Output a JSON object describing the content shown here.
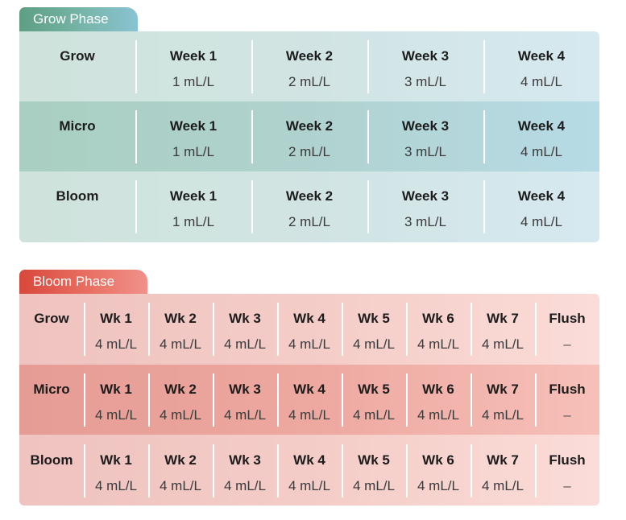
{
  "grow_phase": {
    "title": "Grow Phase",
    "rows": [
      {
        "label": "Grow",
        "cells": [
          {
            "head": "Week 1",
            "value": "1 mL/L"
          },
          {
            "head": "Week 2",
            "value": "2 mL/L"
          },
          {
            "head": "Week 3",
            "value": "3 mL/L"
          },
          {
            "head": "Week 4",
            "value": "4 mL/L"
          }
        ]
      },
      {
        "label": "Micro",
        "cells": [
          {
            "head": "Week 1",
            "value": "1 mL/L"
          },
          {
            "head": "Week 2",
            "value": "2 mL/L"
          },
          {
            "head": "Week 3",
            "value": "3 mL/L"
          },
          {
            "head": "Week 4",
            "value": "4 mL/L"
          }
        ]
      },
      {
        "label": "Bloom",
        "cells": [
          {
            "head": "Week 1",
            "value": "1 mL/L"
          },
          {
            "head": "Week 2",
            "value": "2 mL/L"
          },
          {
            "head": "Week 3",
            "value": "3 mL/L"
          },
          {
            "head": "Week 4",
            "value": "4 mL/L"
          }
        ]
      }
    ],
    "colors": {
      "tab_start": "#5e9f83",
      "tab_end": "#89c3d3",
      "alt_row": "#b0d2cf",
      "base": "#d1e4e3"
    }
  },
  "bloom_phase": {
    "title": "Bloom Phase",
    "rows": [
      {
        "label": "Grow",
        "cells": [
          {
            "head": "Wk 1",
            "value": "4 mL/L"
          },
          {
            "head": "Wk 2",
            "value": "4 mL/L"
          },
          {
            "head": "Wk 3",
            "value": "4 mL/L"
          },
          {
            "head": "Wk 4",
            "value": "4 mL/L"
          },
          {
            "head": "Wk 5",
            "value": "4 mL/L"
          },
          {
            "head": "Wk 6",
            "value": "4 mL/L"
          },
          {
            "head": "Wk 7",
            "value": "4 mL/L"
          },
          {
            "head": "Flush",
            "value": "–"
          }
        ]
      },
      {
        "label": "Micro",
        "cells": [
          {
            "head": "Wk 1",
            "value": "4 mL/L"
          },
          {
            "head": "Wk 2",
            "value": "4 mL/L"
          },
          {
            "head": "Wk 3",
            "value": "4 mL/L"
          },
          {
            "head": "Wk 4",
            "value": "4 mL/L"
          },
          {
            "head": "Wk 5",
            "value": "4 mL/L"
          },
          {
            "head": "Wk 6",
            "value": "4 mL/L"
          },
          {
            "head": "Wk 7",
            "value": "4 mL/L"
          },
          {
            "head": "Flush",
            "value": "–"
          }
        ]
      },
      {
        "label": "Bloom",
        "cells": [
          {
            "head": "Wk 1",
            "value": "4 mL/L"
          },
          {
            "head": "Wk 2",
            "value": "4 mL/L"
          },
          {
            "head": "Wk 3",
            "value": "4 mL/L"
          },
          {
            "head": "Wk 4",
            "value": "4 mL/L"
          },
          {
            "head": "Wk 5",
            "value": "4 mL/L"
          },
          {
            "head": "Wk 6",
            "value": "4 mL/L"
          },
          {
            "head": "Wk 7",
            "value": "4 mL/L"
          },
          {
            "head": "Flush",
            "value": "–"
          }
        ]
      }
    ],
    "colors": {
      "tab_start": "#d9483c",
      "tab_end": "#f0918a",
      "alt_row": "#eda8a0",
      "base": "#f4ccc7"
    }
  }
}
